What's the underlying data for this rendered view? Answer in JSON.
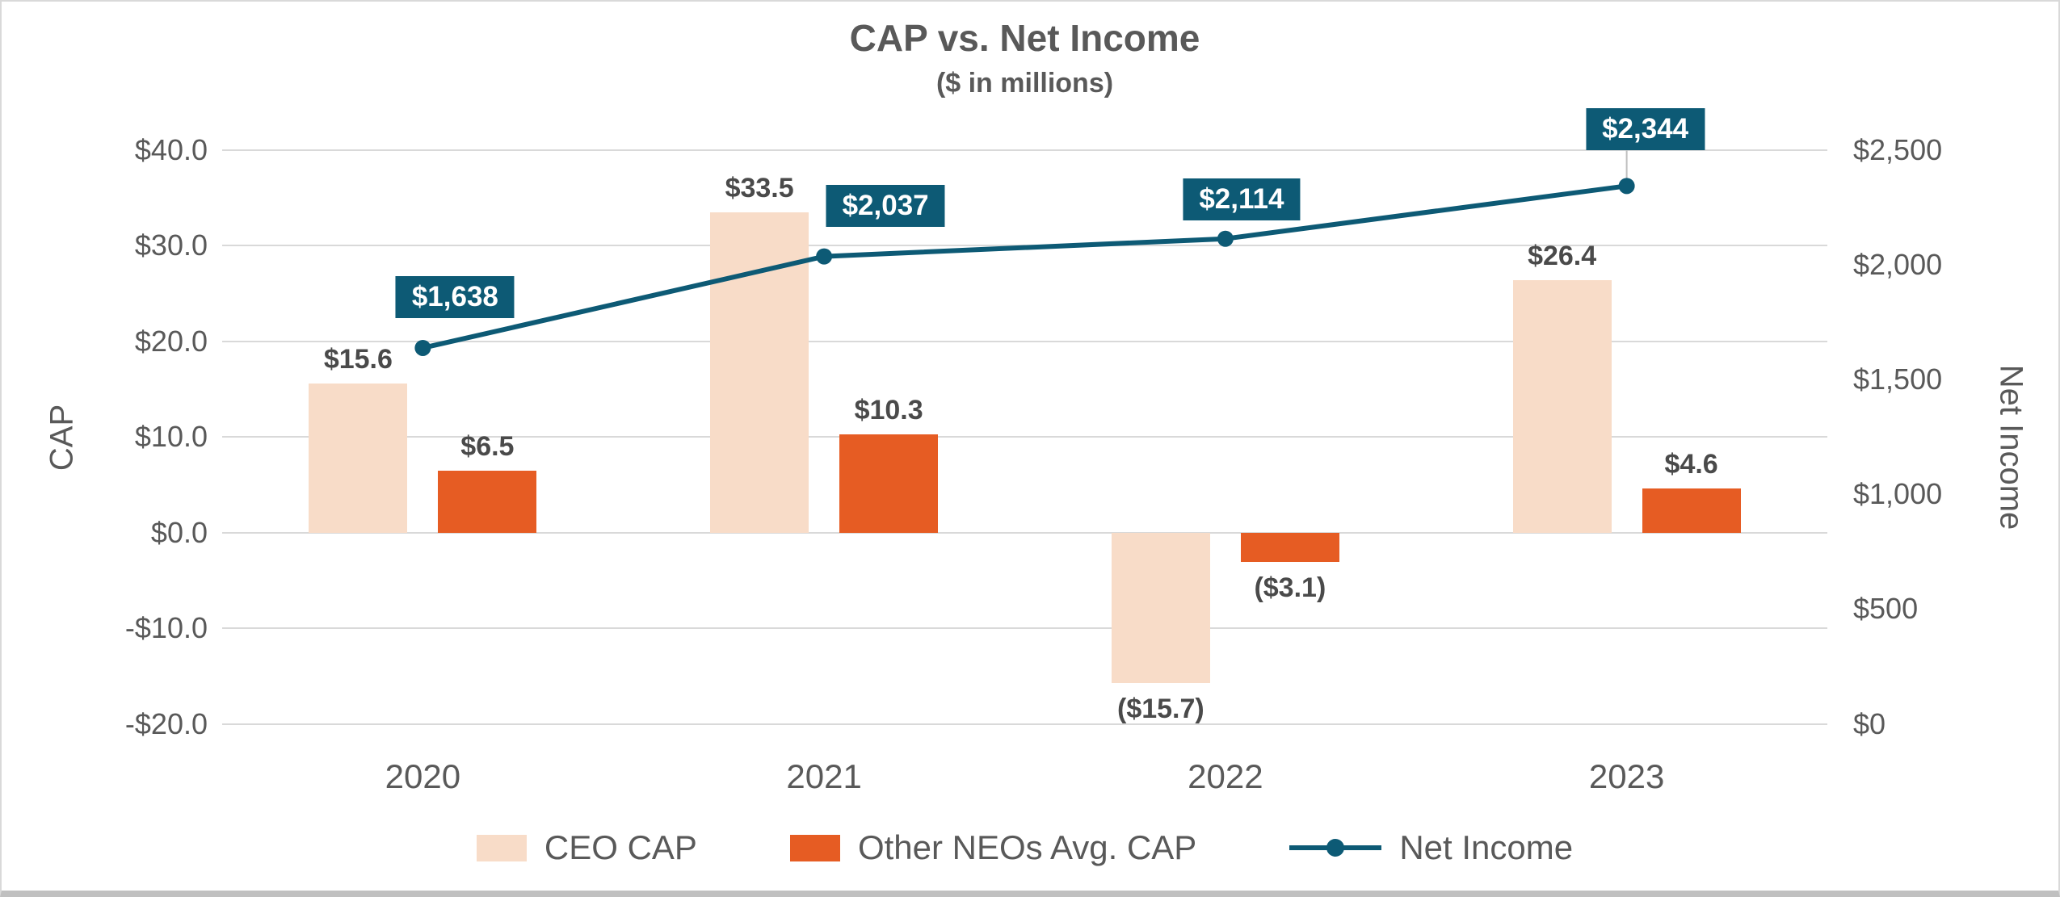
{
  "chart_data": {
    "type": "combo",
    "title": "CAP vs. Net Income",
    "subtitle": "($ in millions)",
    "categories": [
      "2020",
      "2021",
      "2022",
      "2023"
    ],
    "series": [
      {
        "name": "CEO CAP",
        "type": "bar",
        "axis": "left",
        "color": "#F8DCC8",
        "values": [
          15.6,
          33.5,
          -15.7,
          26.4
        ],
        "labels": [
          "$15.6",
          "$33.5",
          "($15.7)",
          "$26.4"
        ]
      },
      {
        "name": "Other NEOs Avg. CAP",
        "type": "bar",
        "axis": "left",
        "color": "#E65C23",
        "values": [
          6.5,
          10.3,
          -3.1,
          4.6
        ],
        "labels": [
          "$6.5",
          "$10.3",
          "($3.1)",
          "$4.6"
        ]
      },
      {
        "name": "Net Income",
        "type": "line",
        "axis": "right",
        "color": "#0D5A75",
        "values": [
          1638,
          2037,
          2114,
          2344
        ],
        "labels": [
          "$1,638",
          "$2,037",
          "$2,114",
          "$2,344"
        ]
      }
    ],
    "left_axis": {
      "label": "CAP",
      "min": -20,
      "max": 40,
      "tick_labels": [
        "$40.0",
        "$30.0",
        "$20.0",
        "$10.0",
        "$0.0",
        "-$10.0",
        "-$20.0"
      ],
      "tick_values": [
        40,
        30,
        20,
        10,
        0,
        -10,
        -20
      ]
    },
    "right_axis": {
      "label": "Net Income",
      "min": 0,
      "max": 2500,
      "tick_labels": [
        "$2,500",
        "$2,000",
        "$1,500",
        "$1,000",
        "$500",
        "$0"
      ],
      "tick_values": [
        2500,
        2000,
        1500,
        1000,
        500,
        0
      ]
    },
    "grid": true,
    "legend_position": "bottom"
  }
}
